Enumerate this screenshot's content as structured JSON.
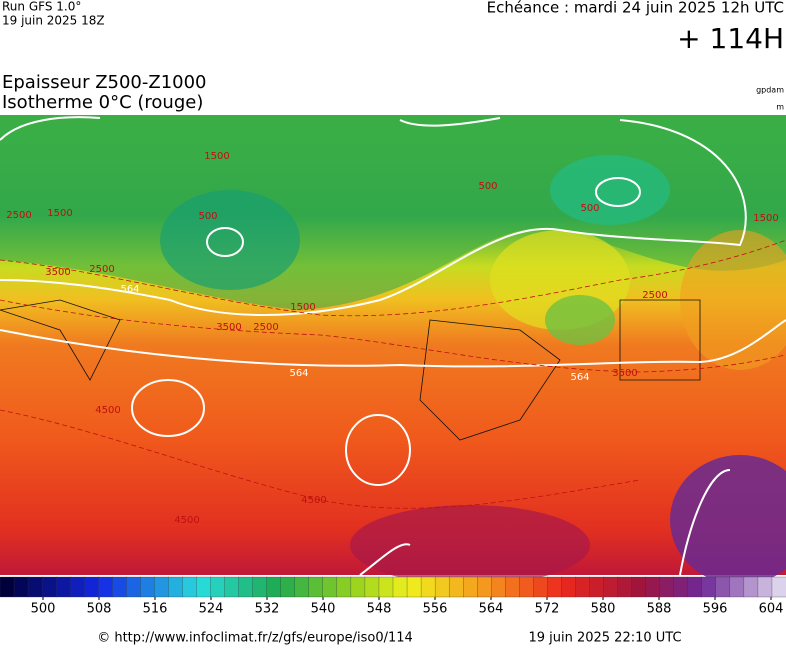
{
  "header": {
    "run": "Run GFS 1.0°",
    "run_date": "19 juin 2025 18Z",
    "valid": "Echéance : mardi 24 juin 2025 12h UTC",
    "lead": "+ 114H",
    "title": "Epaisseur Z500-Z1000",
    "subtitle": "Isotherme 0°C (rouge)",
    "unit_thickness": "gpdam",
    "unit_iso": "m"
  },
  "map": {
    "contour_labels": [
      "564",
      "564",
      "564",
      "500",
      "500",
      "500",
      "1500",
      "1500",
      "1500",
      "1500",
      "2500",
      "2500",
      "2500",
      "2500",
      "3500",
      "3500",
      "3500",
      "4500",
      "4500",
      "4500"
    ]
  },
  "legend": {
    "ticks": [
      500,
      508,
      516,
      524,
      532,
      540,
      548,
      556,
      564,
      572,
      580,
      588,
      596,
      604
    ]
  },
  "footer": {
    "source": "© http://www.infoclimat.fr/z/gfs/europe/iso0/114",
    "generated": "19 juin 2025 22:10 UTC"
  }
}
